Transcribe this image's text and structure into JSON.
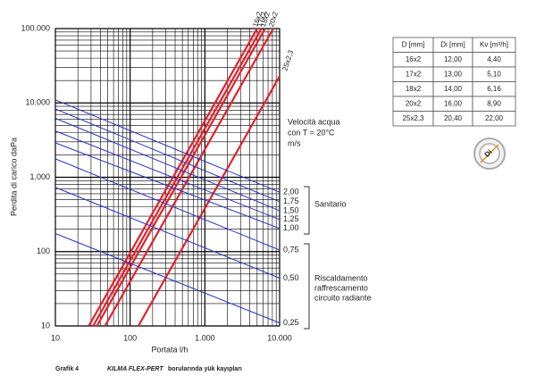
{
  "chart_data": {
    "type": "line",
    "log_scale": {
      "x": true,
      "y": true
    },
    "grid": true,
    "xlabel": "Portata l/h",
    "ylabel": "Perdita di carico daPa",
    "xlim": [
      10,
      10000
    ],
    "ylim": [
      10,
      100000
    ],
    "xticks": [
      10,
      100,
      {
        "value": 1000,
        "label": "1.000"
      },
      {
        "value": 10000,
        "label": "10.000"
      }
    ],
    "yticks": [
      10,
      100,
      {
        "value": 1000,
        "label": "1.000"
      },
      {
        "value": 10000,
        "label": "10.000"
      },
      {
        "value": 100000,
        "label": "100.000"
      }
    ],
    "xminor": [
      20,
      30,
      40,
      50,
      60,
      70,
      80,
      90,
      200,
      300,
      400,
      500,
      600,
      700,
      800,
      900,
      2000,
      3000,
      4000,
      5000,
      6000,
      7000,
      8000,
      9000
    ],
    "yminor": [
      20,
      30,
      40,
      50,
      60,
      70,
      80,
      90,
      200,
      300,
      400,
      500,
      600,
      700,
      800,
      900,
      2000,
      3000,
      4000,
      5000,
      6000,
      7000,
      8000,
      9000,
      20000,
      30000,
      40000,
      50000,
      60000,
      70000,
      80000,
      90000
    ],
    "series": [
      {
        "name": "16x2",
        "color": "#e3202a",
        "x": [
          28,
          5000
        ],
        "values": [
          10,
          100000
        ]
      },
      {
        "name": "17x2",
        "color": "#e3202a",
        "x": [
          32,
          5700
        ],
        "values": [
          10,
          100000
        ]
      },
      {
        "name": "18x2",
        "color": "#e3202a",
        "x": [
          36,
          6400
        ],
        "values": [
          10,
          100000
        ]
      },
      {
        "name": "20x2",
        "color": "#e3202a",
        "x": [
          46,
          8200
        ],
        "values": [
          10,
          100000
        ]
      },
      {
        "name": "25x2,3",
        "color": "#e3202a",
        "x": [
          129,
          10000
        ],
        "values": [
          10,
          22900
        ]
      },
      {
        "name": "2,00",
        "color": "#2b35c4",
        "x": [
          10,
          10000
        ],
        "values": [
          11000,
          630
        ]
      },
      {
        "name": "1,75",
        "color": "#2b35c4",
        "x": [
          10,
          10000
        ],
        "values": [
          8300,
          470
        ]
      },
      {
        "name": "1,50",
        "color": "#2b35c4",
        "x": [
          10,
          10000
        ],
        "values": [
          6200,
          355
        ]
      },
      {
        "name": "1,25",
        "color": "#2b35c4",
        "x": [
          10,
          10000
        ],
        "values": [
          4200,
          270
        ]
      },
      {
        "name": "1,00",
        "color": "#2b35c4",
        "x": [
          10,
          10000
        ],
        "values": [
          2900,
          205
        ]
      },
      {
        "name": "0,75",
        "color": "#2b35c4",
        "x": [
          10,
          10000
        ],
        "values": [
          1770,
          105
        ]
      },
      {
        "name": "0,50",
        "color": "#2b35c4",
        "x": [
          10,
          10000
        ],
        "values": [
          730,
          44
        ]
      },
      {
        "name": "0,25",
        "color": "#2b35c4",
        "x": [
          10,
          10000
        ],
        "values": [
          175,
          11
        ]
      }
    ],
    "annotations": [
      "Velocità acqua",
      "con T = 20°C",
      "m/s",
      "Sanitario",
      "Riscaldamento",
      "raffrescamento",
      "circuito radiante"
    ],
    "caption": [
      "Grafik 4",
      "KILMA FLEX-PERT",
      "borularında yük kayıpları"
    ]
  },
  "table": {
    "header": [
      "D [mm]",
      "Di [mm]",
      "Kv [m³/h]"
    ],
    "rows": [
      [
        "16x2",
        "12,00",
        "4,40"
      ],
      [
        "17x2",
        "13,00",
        "5,10"
      ],
      [
        "18x2",
        "14,00",
        "6,16"
      ],
      [
        "20x2",
        "16,00",
        "8,90"
      ],
      [
        "25x2,3",
        "20,40",
        "22,00"
      ]
    ]
  },
  "icon_label": "Di"
}
